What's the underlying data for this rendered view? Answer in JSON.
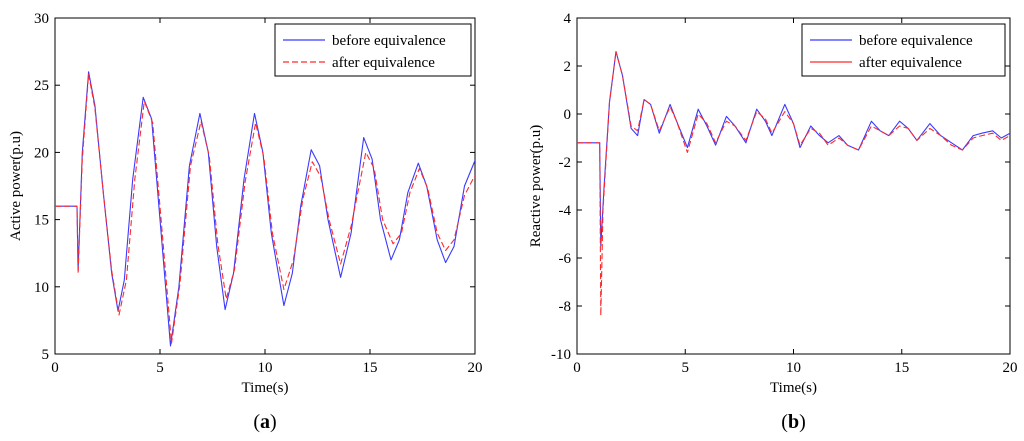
{
  "chart_data": [
    {
      "type": "line",
      "panel_label": "a",
      "xlabel": "Time(s)",
      "ylabel": "Active power(p.u)",
      "xlim": [
        0,
        20
      ],
      "ylim": [
        5,
        30
      ],
      "xticks": [
        0,
        5,
        10,
        15,
        20
      ],
      "yticks": [
        5,
        10,
        15,
        20,
        25,
        30
      ],
      "legend_position": "top-right",
      "series": [
        {
          "name": "before equivalence",
          "color": "#3a3aff",
          "style": "solid",
          "points": [
            [
              0,
              16
            ],
            [
              1.0,
              16
            ],
            [
              1.05,
              16
            ],
            [
              1.1,
              11.2
            ],
            [
              1.3,
              20
            ],
            [
              1.6,
              26.0
            ],
            [
              1.9,
              23.5
            ],
            [
              2.3,
              17
            ],
            [
              2.7,
              11
            ],
            [
              3.0,
              8.2
            ],
            [
              3.3,
              10.5
            ],
            [
              3.7,
              18
            ],
            [
              4.2,
              24.1
            ],
            [
              4.6,
              22.5
            ],
            [
              5.0,
              15
            ],
            [
              5.5,
              5.6
            ],
            [
              5.9,
              10
            ],
            [
              6.4,
              19
            ],
            [
              6.9,
              22.9
            ],
            [
              7.3,
              20
            ],
            [
              7.7,
              13
            ],
            [
              8.1,
              8.3
            ],
            [
              8.5,
              11
            ],
            [
              9.0,
              18
            ],
            [
              9.5,
              22.9
            ],
            [
              9.9,
              20
            ],
            [
              10.3,
              14
            ],
            [
              10.9,
              8.6
            ],
            [
              11.3,
              11
            ],
            [
              11.7,
              16
            ],
            [
              12.2,
              20.2
            ],
            [
              12.6,
              19
            ],
            [
              13.0,
              15
            ],
            [
              13.6,
              10.7
            ],
            [
              14.1,
              14
            ],
            [
              14.7,
              21.1
            ],
            [
              15.1,
              19.5
            ],
            [
              15.5,
              15
            ],
            [
              16.0,
              12.0
            ],
            [
              16.4,
              13.5
            ],
            [
              16.8,
              17
            ],
            [
              17.3,
              19.2
            ],
            [
              17.7,
              17.5
            ],
            [
              18.2,
              13.5
            ],
            [
              18.6,
              11.8
            ],
            [
              19.0,
              13
            ],
            [
              19.5,
              17.5
            ],
            [
              20.0,
              19.4
            ]
          ]
        },
        {
          "name": "after equivalence",
          "color": "#ff2a2a",
          "style": "dashed",
          "points": [
            [
              0,
              16
            ],
            [
              1.0,
              16
            ],
            [
              1.05,
              16
            ],
            [
              1.1,
              11.0
            ],
            [
              1.3,
              19.5
            ],
            [
              1.6,
              25.8
            ],
            [
              1.9,
              23.3
            ],
            [
              2.3,
              17
            ],
            [
              2.7,
              11.2
            ],
            [
              3.05,
              7.9
            ],
            [
              3.4,
              10.5
            ],
            [
              3.8,
              18
            ],
            [
              4.25,
              23.8
            ],
            [
              4.65,
              22.2
            ],
            [
              5.05,
              15
            ],
            [
              5.55,
              5.8
            ],
            [
              5.95,
              10.2
            ],
            [
              6.45,
              19
            ],
            [
              6.95,
              22.3
            ],
            [
              7.35,
              19.7
            ],
            [
              7.75,
              13.2
            ],
            [
              8.15,
              9.1
            ],
            [
              8.55,
              11.3
            ],
            [
              9.05,
              17.8
            ],
            [
              9.55,
              22.2
            ],
            [
              9.95,
              19.6
            ],
            [
              10.35,
              14
            ],
            [
              10.9,
              9.8
            ],
            [
              11.35,
              12
            ],
            [
              11.8,
              16.5
            ],
            [
              12.25,
              19.3
            ],
            [
              12.65,
              18.2
            ],
            [
              13.05,
              15
            ],
            [
              13.6,
              11.7
            ],
            [
              14.1,
              14.5
            ],
            [
              14.8,
              20.0
            ],
            [
              15.2,
              18.8
            ],
            [
              15.6,
              15
            ],
            [
              16.1,
              13.2
            ],
            [
              16.5,
              14
            ],
            [
              16.9,
              17
            ],
            [
              17.35,
              18.8
            ],
            [
              17.75,
              17.3
            ],
            [
              18.2,
              14
            ],
            [
              18.6,
              12.7
            ],
            [
              19.0,
              13.5
            ],
            [
              19.5,
              16.8
            ],
            [
              20.0,
              18.3
            ]
          ]
        }
      ]
    },
    {
      "type": "line",
      "panel_label": "b",
      "xlabel": "Time(s)",
      "ylabel": "Reactive power(p.u)",
      "xlim": [
        0,
        20
      ],
      "ylim": [
        -10,
        4
      ],
      "xticks": [
        0,
        5,
        10,
        15,
        20
      ],
      "yticks": [
        -10,
        -8,
        -6,
        -4,
        -2,
        0,
        2,
        4
      ],
      "legend_position": "top-right",
      "series": [
        {
          "name": "before equivalence",
          "color": "#3a3aff",
          "style": "solid",
          "points": [
            [
              0,
              -1.2
            ],
            [
              1.0,
              -1.2
            ],
            [
              1.05,
              -1.2
            ],
            [
              1.1,
              -5.5
            ],
            [
              1.25,
              -3
            ],
            [
              1.5,
              0.5
            ],
            [
              1.8,
              2.6
            ],
            [
              2.1,
              1.6
            ],
            [
              2.5,
              -0.6
            ],
            [
              2.8,
              -0.9
            ],
            [
              3.1,
              0.6
            ],
            [
              3.4,
              0.4
            ],
            [
              3.8,
              -0.8
            ],
            [
              4.3,
              0.4
            ],
            [
              4.6,
              -0.3
            ],
            [
              5.1,
              -1.4
            ],
            [
              5.6,
              0.2
            ],
            [
              6.0,
              -0.5
            ],
            [
              6.4,
              -1.3
            ],
            [
              6.9,
              -0.1
            ],
            [
              7.3,
              -0.5
            ],
            [
              7.8,
              -1.2
            ],
            [
              8.3,
              0.2
            ],
            [
              8.7,
              -0.3
            ],
            [
              9.0,
              -0.9
            ],
            [
              9.6,
              0.4
            ],
            [
              10.0,
              -0.4
            ],
            [
              10.3,
              -1.4
            ],
            [
              10.8,
              -0.5
            ],
            [
              11.2,
              -0.9
            ],
            [
              11.6,
              -1.2
            ],
            [
              12.1,
              -0.9
            ],
            [
              12.5,
              -1.3
            ],
            [
              13.0,
              -1.5
            ],
            [
              13.6,
              -0.3
            ],
            [
              14.0,
              -0.7
            ],
            [
              14.4,
              -0.9
            ],
            [
              14.9,
              -0.3
            ],
            [
              15.3,
              -0.6
            ],
            [
              15.7,
              -1.1
            ],
            [
              16.3,
              -0.4
            ],
            [
              16.8,
              -0.9
            ],
            [
              17.3,
              -1.2
            ],
            [
              17.8,
              -1.5
            ],
            [
              18.3,
              -0.9
            ],
            [
              18.7,
              -0.8
            ],
            [
              19.2,
              -0.7
            ],
            [
              19.6,
              -1.0
            ],
            [
              20.0,
              -0.8
            ]
          ]
        },
        {
          "name": "after equivalence",
          "color": "#ff2a2a",
          "style": "dashed",
          "points": [
            [
              0,
              -1.2
            ],
            [
              1.0,
              -1.2
            ],
            [
              1.05,
              -1.2
            ],
            [
              1.1,
              -8.4
            ],
            [
              1.2,
              -4
            ],
            [
              1.5,
              0.5
            ],
            [
              1.8,
              2.6
            ],
            [
              2.1,
              1.6
            ],
            [
              2.5,
              -0.5
            ],
            [
              2.8,
              -0.7
            ],
            [
              3.1,
              0.6
            ],
            [
              3.4,
              0.4
            ],
            [
              3.8,
              -0.7
            ],
            [
              4.3,
              0.3
            ],
            [
              4.6,
              -0.3
            ],
            [
              5.1,
              -1.6
            ],
            [
              5.6,
              0.0
            ],
            [
              6.0,
              -0.4
            ],
            [
              6.4,
              -1.2
            ],
            [
              6.9,
              -0.3
            ],
            [
              7.3,
              -0.5
            ],
            [
              7.8,
              -1.1
            ],
            [
              8.3,
              0.1
            ],
            [
              8.7,
              -0.2
            ],
            [
              9.0,
              -0.8
            ],
            [
              9.6,
              0.1
            ],
            [
              10.0,
              -0.4
            ],
            [
              10.3,
              -1.3
            ],
            [
              10.8,
              -0.6
            ],
            [
              11.2,
              -0.8
            ],
            [
              11.6,
              -1.3
            ],
            [
              12.1,
              -1.0
            ],
            [
              12.5,
              -1.3
            ],
            [
              13.0,
              -1.5
            ],
            [
              13.6,
              -0.5
            ],
            [
              14.0,
              -0.7
            ],
            [
              14.4,
              -0.9
            ],
            [
              14.9,
              -0.5
            ],
            [
              15.3,
              -0.6
            ],
            [
              15.7,
              -1.1
            ],
            [
              16.3,
              -0.6
            ],
            [
              16.8,
              -0.9
            ],
            [
              17.3,
              -1.3
            ],
            [
              17.8,
              -1.5
            ],
            [
              18.3,
              -1.0
            ],
            [
              18.7,
              -0.9
            ],
            [
              19.2,
              -0.8
            ],
            [
              19.6,
              -1.1
            ],
            [
              20.0,
              -0.9
            ]
          ]
        }
      ]
    }
  ]
}
